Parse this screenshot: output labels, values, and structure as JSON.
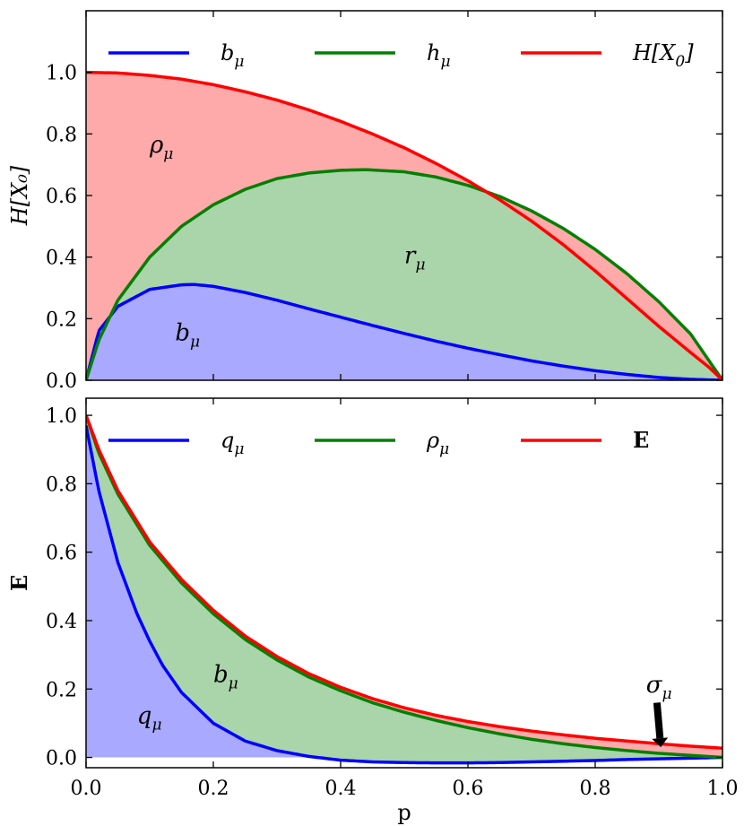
{
  "chart_data": [
    {
      "type": "area",
      "xlabel": "",
      "ylabel": "H[X₀]",
      "xlim": [
        0,
        1
      ],
      "ylim": [
        0,
        1.2
      ],
      "yticks": [
        "0.0",
        "0.2",
        "0.4",
        "0.6",
        "0.8",
        "1.0"
      ],
      "legend_position": "top",
      "series": [
        {
          "name": "b_μ",
          "legend_main": "b",
          "legend_sub": "μ",
          "color": "#0000ff",
          "x": [
            0,
            0.02,
            0.05,
            0.1,
            0.15,
            0.17,
            0.2,
            0.25,
            0.3,
            0.35,
            0.4,
            0.45,
            0.5,
            0.55,
            0.6,
            0.65,
            0.7,
            0.75,
            0.8,
            0.85,
            0.9,
            0.95,
            1.0
          ],
          "y": [
            0,
            0.16,
            0.24,
            0.295,
            0.31,
            0.311,
            0.305,
            0.285,
            0.26,
            0.232,
            0.205,
            0.178,
            0.152,
            0.127,
            0.104,
            0.083,
            0.063,
            0.046,
            0.031,
            0.019,
            0.009,
            0.003,
            0
          ]
        },
        {
          "name": "h_μ",
          "legend_main": "h",
          "legend_sub": "μ",
          "color": "#008000",
          "x": [
            0,
            0.02,
            0.05,
            0.1,
            0.15,
            0.2,
            0.25,
            0.3,
            0.35,
            0.4,
            0.44,
            0.5,
            0.55,
            0.6,
            0.65,
            0.7,
            0.75,
            0.8,
            0.85,
            0.9,
            0.95,
            1.0
          ],
          "y": [
            0,
            0.13,
            0.26,
            0.4,
            0.5,
            0.57,
            0.62,
            0.655,
            0.673,
            0.682,
            0.684,
            0.677,
            0.66,
            0.633,
            0.597,
            0.55,
            0.493,
            0.425,
            0.346,
            0.255,
            0.15,
            0
          ]
        },
        {
          "name": "H[X₀]",
          "legend_main": "H[X",
          "legend_sub": "0",
          "legend_tail": "]",
          "color": "#ff0000",
          "x": [
            0,
            0.05,
            0.1,
            0.15,
            0.2,
            0.25,
            0.3,
            0.35,
            0.4,
            0.45,
            0.5,
            0.55,
            0.6,
            0.65,
            0.7,
            0.75,
            0.8,
            0.85,
            0.9,
            0.95,
            0.98,
            1.0
          ],
          "y": [
            1.0,
            0.998,
            0.99,
            0.978,
            0.96,
            0.937,
            0.91,
            0.878,
            0.841,
            0.8,
            0.755,
            0.704,
            0.648,
            0.586,
            0.517,
            0.44,
            0.355,
            0.265,
            0.175,
            0.09,
            0.04,
            0
          ]
        }
      ],
      "fills": [
        {
          "between": [
            null,
            0
          ],
          "color": "#a9a9ff"
        },
        {
          "between": [
            0,
            1
          ],
          "color": "#aad4aa"
        },
        {
          "between": [
            1,
            2
          ],
          "color": "#ffaaaa"
        }
      ],
      "annotations": [
        {
          "main": "ρ",
          "sub": "μ",
          "x": 0.1,
          "y": 0.74
        },
        {
          "main": "r",
          "sub": "μ",
          "x": 0.5,
          "y": 0.38
        },
        {
          "main": "b",
          "sub": "μ",
          "x": 0.14,
          "y": 0.13
        }
      ]
    },
    {
      "type": "area",
      "xlabel": "p",
      "ylabel": "E",
      "xlim": [
        0,
        1
      ],
      "ylim": [
        -0.03,
        1.05
      ],
      "xticks": [
        "0.0",
        "0.2",
        "0.4",
        "0.6",
        "0.8",
        "1.0"
      ],
      "yticks": [
        "0.0",
        "0.2",
        "0.4",
        "0.6",
        "0.8",
        "1.0"
      ],
      "legend_position": "top",
      "series": [
        {
          "name": "q_μ",
          "legend_main": "q",
          "legend_sub": "μ",
          "color": "#0000ff",
          "x": [
            0,
            0.02,
            0.05,
            0.08,
            0.1,
            0.12,
            0.15,
            0.2,
            0.25,
            0.3,
            0.35,
            0.4,
            0.45,
            0.5,
            0.55,
            0.6,
            0.65,
            0.7,
            0.75,
            0.8,
            0.85,
            0.9,
            0.95,
            1.0
          ],
          "y": [
            0.97,
            0.78,
            0.57,
            0.42,
            0.34,
            0.27,
            0.19,
            0.1,
            0.048,
            0.02,
            0.003,
            -0.008,
            -0.013,
            -0.015,
            -0.016,
            -0.016,
            -0.015,
            -0.013,
            -0.011,
            -0.009,
            -0.006,
            -0.004,
            -0.002,
            0
          ]
        },
        {
          "name": "ρ_μ",
          "legend_main": "ρ",
          "legend_sub": "μ",
          "color": "#008000",
          "x": [
            0,
            0.02,
            0.05,
            0.1,
            0.15,
            0.2,
            0.25,
            0.3,
            0.35,
            0.4,
            0.45,
            0.5,
            0.55,
            0.6,
            0.65,
            0.7,
            0.75,
            0.8,
            0.85,
            0.9,
            0.95,
            1.0
          ],
          "y": [
            1.0,
            0.89,
            0.77,
            0.62,
            0.51,
            0.42,
            0.345,
            0.285,
            0.235,
            0.195,
            0.16,
            0.132,
            0.108,
            0.087,
            0.069,
            0.053,
            0.04,
            0.029,
            0.02,
            0.012,
            0.006,
            0
          ]
        },
        {
          "name": "E",
          "legend_main": "E",
          "legend_bold": true,
          "color": "#ff0000",
          "x": [
            0,
            0.02,
            0.05,
            0.1,
            0.15,
            0.2,
            0.25,
            0.3,
            0.35,
            0.4,
            0.45,
            0.5,
            0.55,
            0.6,
            0.65,
            0.7,
            0.75,
            0.8,
            0.85,
            0.9,
            0.95,
            1.0
          ],
          "y": [
            1.0,
            0.9,
            0.78,
            0.63,
            0.52,
            0.43,
            0.355,
            0.295,
            0.245,
            0.205,
            0.172,
            0.145,
            0.123,
            0.105,
            0.09,
            0.077,
            0.066,
            0.056,
            0.048,
            0.04,
            0.033,
            0.027
          ]
        }
      ],
      "fills": [
        {
          "between": [
            null,
            0
          ],
          "color": "#a9a9ff"
        },
        {
          "between": [
            0,
            1
          ],
          "color": "#aad4aa"
        },
        {
          "between": [
            1,
            2
          ],
          "color": "#ffaaaa"
        }
      ],
      "annotations": [
        {
          "main": "q",
          "sub": "μ",
          "x": 0.08,
          "y": 0.1
        },
        {
          "main": "b",
          "sub": "μ",
          "x": 0.2,
          "y": 0.22
        },
        {
          "main": "σ",
          "sub": "μ",
          "x": 0.88,
          "y": 0.19
        }
      ],
      "arrow": {
        "from": [
          0.897,
          0.16
        ],
        "to": [
          0.903,
          0.03
        ]
      }
    }
  ]
}
